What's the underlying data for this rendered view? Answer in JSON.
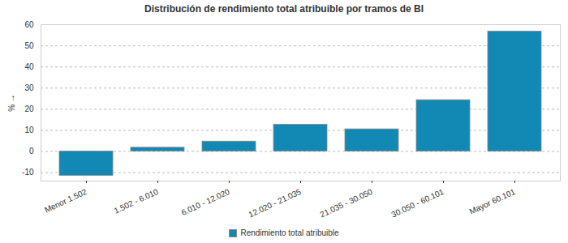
{
  "chart_data": {
    "type": "bar",
    "title": "Distribución de rendimiento total atribuible por tramos de BI",
    "y_label": "%",
    "categories": [
      "Menor 1.502",
      "1.502 - 6.010",
      "6.010 - 12.020",
      "12.020 - 21.035",
      "21.035 - 30.050",
      "30.050 - 60.101",
      "Mayor 60.101"
    ],
    "series": [
      {
        "name": "Rendimiento total atribuible",
        "color": "#1288b5",
        "values": [
          -11.5,
          1.8,
          4.7,
          12.7,
          10.5,
          24.3,
          56.8
        ]
      }
    ],
    "ylim": [
      -14,
      60
    ],
    "yticks": [
      -10,
      0,
      10,
      20,
      30,
      40,
      50,
      60
    ],
    "grid": true,
    "legend": "bottom"
  }
}
